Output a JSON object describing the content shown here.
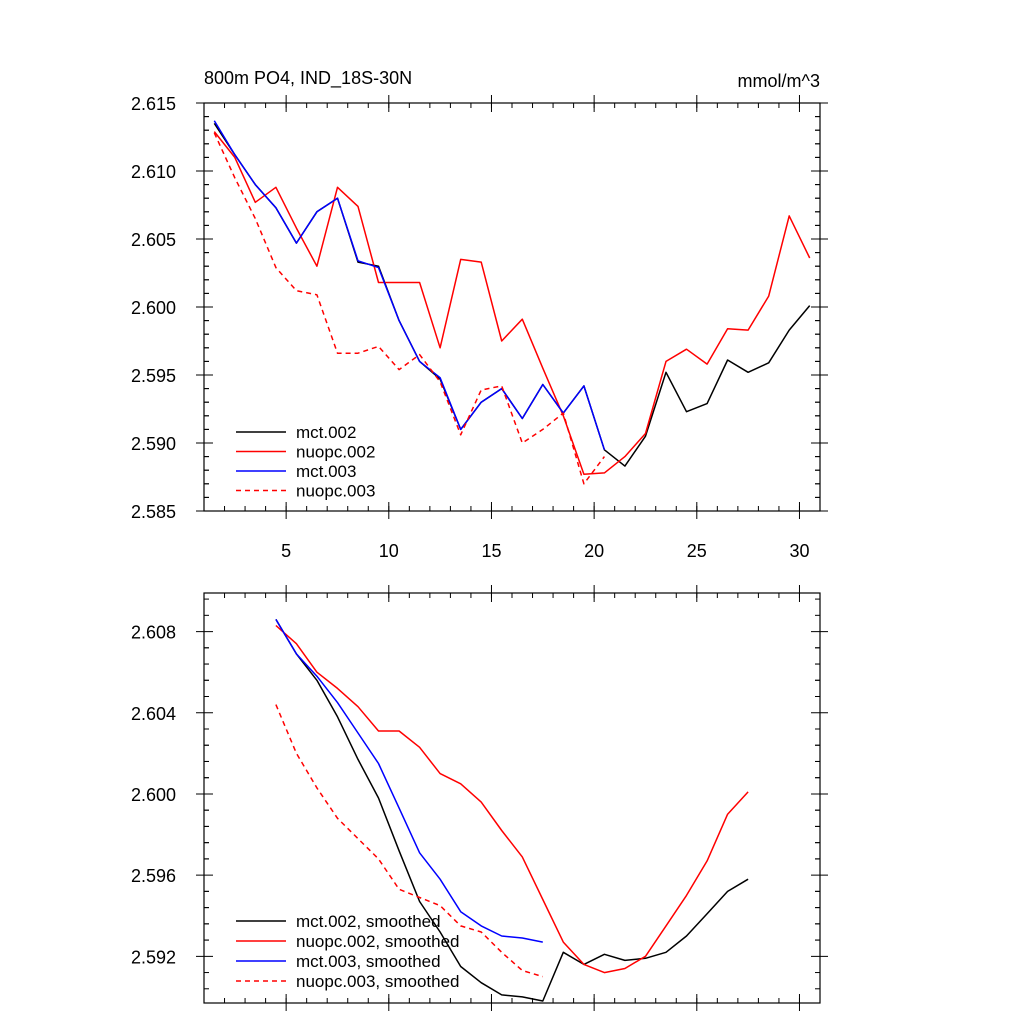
{
  "chart_data": [
    {
      "type": "line",
      "title": "800m PO4, IND_18S-30N",
      "units": "mmol/m^3",
      "xlabel": "",
      "ylabel": "",
      "xlim": [
        1,
        31
      ],
      "ylim": [
        2.585,
        2.615
      ],
      "x_ticks": [
        5,
        10,
        15,
        20,
        25,
        30
      ],
      "x_tick_labels": [
        "5",
        "10",
        "15",
        "20",
        "25",
        "30"
      ],
      "y_ticks": [
        2.585,
        2.59,
        2.595,
        2.6,
        2.605,
        2.61,
        2.615
      ],
      "y_tick_labels": [
        "2.585",
        "2.590",
        "2.595",
        "2.600",
        "2.605",
        "2.610",
        "2.615"
      ],
      "legend": "bottom-left",
      "grid": false,
      "series": [
        {
          "name": "mct.002",
          "color": "#000000",
          "dash": "solid",
          "x": [
            1.5,
            2.5,
            3.5,
            4.5,
            5.5,
            6.5,
            7.5,
            8.5,
            9.5,
            10.5,
            11.5,
            12.5,
            13.5,
            14.5,
            15.5,
            16.5,
            17.5,
            18.5,
            19.5,
            20.5,
            21.5,
            22.5,
            23.5,
            24.5,
            25.5,
            26.5,
            27.5,
            28.5,
            29.5,
            30.5
          ],
          "y": [
            2.6135,
            2.6112,
            2.609,
            2.6073,
            2.6047,
            2.607,
            2.608,
            2.6033,
            2.603,
            2.599,
            2.596,
            2.5947,
            2.591,
            2.593,
            2.594,
            2.5918,
            2.5943,
            2.5922,
            2.5942,
            2.5895,
            2.5883,
            2.5905,
            2.5952,
            2.5923,
            2.5929,
            2.5961,
            2.5952,
            2.5959,
            2.5983,
            2.6001
          ]
        },
        {
          "name": "nuopc.002",
          "color": "#ff0000",
          "dash": "solid",
          "x": [
            1.5,
            2.5,
            3.5,
            4.5,
            5.5,
            6.5,
            7.5,
            8.5,
            9.5,
            10.5,
            11.5,
            12.5,
            13.5,
            14.5,
            15.5,
            16.5,
            17.5,
            18.5,
            19.5,
            20.5,
            21.5,
            22.5,
            23.5,
            24.5,
            25.5,
            26.5,
            27.5,
            28.5,
            29.5,
            30.5
          ],
          "y": [
            2.6129,
            2.611,
            2.6077,
            2.6088,
            2.6058,
            2.603,
            2.6088,
            2.6074,
            2.6018,
            2.6018,
            2.6018,
            2.597,
            2.6035,
            2.6033,
            2.5975,
            2.5991,
            2.5955,
            2.592,
            2.5877,
            2.5878,
            2.589,
            2.5907,
            2.596,
            2.5969,
            2.5958,
            2.5984,
            2.5983,
            2.6008,
            2.6067,
            2.6036
          ]
        },
        {
          "name": "mct.003",
          "color": "#0000ff",
          "dash": "solid",
          "x": [
            1.5,
            2.5,
            3.5,
            4.5,
            5.5,
            6.5,
            7.5,
            8.5,
            9.5,
            10.5,
            11.5,
            12.5,
            13.5,
            14.5,
            15.5,
            16.5,
            17.5,
            18.5,
            19.5,
            20.5
          ],
          "y": [
            2.6137,
            2.6112,
            2.609,
            2.6073,
            2.6047,
            2.607,
            2.608,
            2.6034,
            2.6029,
            2.599,
            2.596,
            2.5948,
            2.591,
            2.593,
            2.594,
            2.5918,
            2.5943,
            2.5922,
            2.5942,
            2.5895
          ]
        },
        {
          "name": "nuopc.003",
          "color": "#ff0000",
          "dash": "dashed",
          "x": [
            1.5,
            2.5,
            3.5,
            4.5,
            5.5,
            6.5,
            7.5,
            8.5,
            9.5,
            10.5,
            11.5,
            12.5,
            13.5,
            14.5,
            15.5,
            16.5,
            17.5,
            18.5,
            19.5,
            20.5
          ],
          "y": [
            2.6128,
            2.6095,
            2.6065,
            2.6029,
            2.6012,
            2.6009,
            2.5966,
            2.5966,
            2.5971,
            2.5954,
            2.5965,
            2.5945,
            2.5906,
            2.5939,
            2.5942,
            2.59,
            2.591,
            2.5922,
            2.587,
            2.589
          ]
        }
      ]
    },
    {
      "type": "line",
      "title": "",
      "xlabel": "",
      "ylabel": "",
      "xlim": [
        1,
        31
      ],
      "ylim": [
        2.5897,
        2.6099
      ],
      "x_ticks": [
        5,
        10,
        15,
        20,
        25,
        30
      ],
      "x_tick_labels": [],
      "y_ticks": [
        2.592,
        2.596,
        2.6,
        2.604,
        2.608
      ],
      "y_tick_labels": [
        "2.592",
        "2.596",
        "2.600",
        "2.604",
        "2.608"
      ],
      "legend": "bottom-left",
      "grid": false,
      "series": [
        {
          "name": "mct.002, smoothed",
          "color": "#000000",
          "dash": "solid",
          "x": [
            4.5,
            5.5,
            6.5,
            7.5,
            8.5,
            9.5,
            10.5,
            11.5,
            12.5,
            13.5,
            14.5,
            15.5,
            16.5,
            17.5,
            18.5,
            19.5,
            20.5,
            21.5,
            22.5,
            23.5,
            24.5,
            25.5,
            26.5,
            27.5
          ],
          "y": [
            2.6086,
            2.6069,
            2.6056,
            2.6038,
            2.6017,
            2.5998,
            2.5972,
            2.5947,
            2.5932,
            2.5915,
            2.5907,
            2.5901,
            2.59,
            2.5898,
            2.5922,
            2.5916,
            2.5921,
            2.5918,
            2.5919,
            2.5922,
            2.593,
            2.5941,
            2.5952,
            2.5958
          ]
        },
        {
          "name": "nuopc.002, smoothed",
          "color": "#ff0000",
          "dash": "solid",
          "x": [
            4.5,
            5.5,
            6.5,
            7.5,
            8.5,
            9.5,
            10.5,
            11.5,
            12.5,
            13.5,
            14.5,
            15.5,
            16.5,
            17.5,
            18.5,
            19.5,
            20.5,
            21.5,
            22.5,
            23.5,
            24.5,
            25.5,
            26.5,
            27.5
          ],
          "y": [
            2.6083,
            2.6074,
            2.606,
            2.6052,
            2.6043,
            2.6031,
            2.6031,
            2.6023,
            2.601,
            2.6005,
            2.5996,
            2.5982,
            2.5969,
            2.5948,
            2.5927,
            2.5916,
            2.5912,
            2.5914,
            2.592,
            2.5935,
            2.595,
            2.5967,
            2.599,
            2.6001
          ]
        },
        {
          "name": "mct.003, smoothed",
          "color": "#0000ff",
          "dash": "solid",
          "x": [
            4.5,
            5.5,
            6.5,
            7.5,
            8.5,
            9.5,
            10.5,
            11.5,
            12.5,
            13.5,
            14.5,
            15.5,
            16.5,
            17.5
          ],
          "y": [
            2.6086,
            2.6069,
            2.6058,
            2.6045,
            2.603,
            2.6015,
            2.5993,
            2.5971,
            2.5958,
            2.5942,
            2.5935,
            2.593,
            2.5929,
            2.5927
          ]
        },
        {
          "name": "nuopc.003, smoothed",
          "color": "#ff0000",
          "dash": "dashed",
          "x": [
            4.5,
            5.5,
            6.5,
            7.5,
            8.5,
            9.5,
            10.5,
            11.5,
            12.5,
            13.5,
            14.5,
            15.5,
            16.5,
            17.5
          ],
          "y": [
            2.6044,
            2.602,
            2.6003,
            2.5988,
            2.5978,
            2.5968,
            2.5953,
            2.5949,
            2.5945,
            2.5935,
            2.5932,
            2.5922,
            2.5913,
            2.591
          ]
        }
      ]
    }
  ]
}
